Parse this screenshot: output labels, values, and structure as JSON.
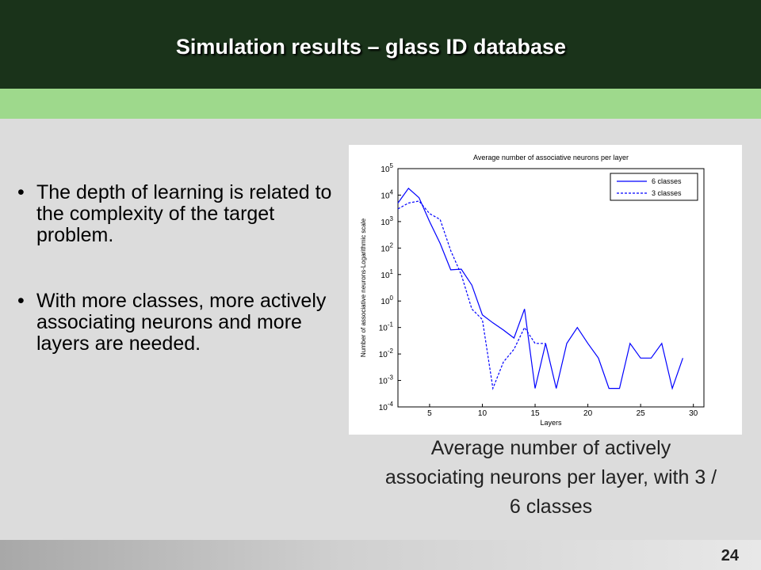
{
  "slide": {
    "title": "Simulation results – glass ID database",
    "page_number": "24",
    "bullets": [
      "The depth of learning is related to the complexity of the target problem.",
      "With more classes, more actively associating neurons and more layers are needed."
    ],
    "bullet_symbol": "•",
    "caption": "Average number of actively associating neurons per layer, with 3 / 6 classes"
  },
  "colors": {
    "header": "#1a331a",
    "band": "#9ed98c",
    "series": "#0000ff"
  },
  "chart_data": {
    "type": "line",
    "title": "Average number of associative neurons per layer",
    "xlabel": "Layers",
    "ylabel": "Number of associative neurons-Logarithmic scale",
    "xlim": [
      2,
      31
    ],
    "ylim": [
      0.0001,
      100000
    ],
    "yscale": "log",
    "grid": false,
    "legend_position": "top-right",
    "x_ticks": [
      5,
      10,
      15,
      20,
      25,
      30
    ],
    "y_ticks": [
      {
        "base": "10",
        "exp": "5",
        "value": 100000
      },
      {
        "base": "10",
        "exp": "4",
        "value": 10000
      },
      {
        "base": "10",
        "exp": "3",
        "value": 1000
      },
      {
        "base": "10",
        "exp": "2",
        "value": 100
      },
      {
        "base": "10",
        "exp": "1",
        "value": 10
      },
      {
        "base": "10",
        "exp": "0",
        "value": 1
      },
      {
        "base": "10",
        "exp": "-1",
        "value": 0.1
      },
      {
        "base": "10",
        "exp": "-2",
        "value": 0.01
      },
      {
        "base": "10",
        "exp": "-3",
        "value": 0.001
      },
      {
        "base": "10",
        "exp": "-4",
        "value": 0.0001
      }
    ],
    "series": [
      {
        "name": "6 classes",
        "style": "solid",
        "x": [
          2,
          3,
          4,
          5,
          6,
          7,
          8,
          9,
          10,
          11,
          12,
          13,
          14,
          15,
          16,
          17,
          18,
          19,
          20,
          21,
          22,
          23,
          24,
          25,
          26,
          27,
          28,
          29
        ],
        "y": [
          5000,
          18000,
          8000,
          1000,
          150,
          15,
          16,
          4,
          0.3,
          0.15,
          0.08,
          0.04,
          0.5,
          0.0005,
          0.025,
          0.0005,
          0.025,
          0.1,
          0.025,
          0.007,
          0.0005,
          0.0005,
          0.025,
          0.007,
          0.007,
          0.025,
          0.0005,
          0.007
        ]
      },
      {
        "name": "3 classes",
        "style": "dashed",
        "x": [
          2,
          3,
          4,
          5,
          6,
          7,
          8,
          9,
          10,
          11,
          12,
          13,
          14,
          15,
          16
        ],
        "y": [
          3000,
          5000,
          6000,
          2000,
          1200,
          80,
          10,
          0.5,
          0.2,
          0.0005,
          0.005,
          0.015,
          0.1,
          0.025,
          0.025
        ]
      }
    ]
  }
}
